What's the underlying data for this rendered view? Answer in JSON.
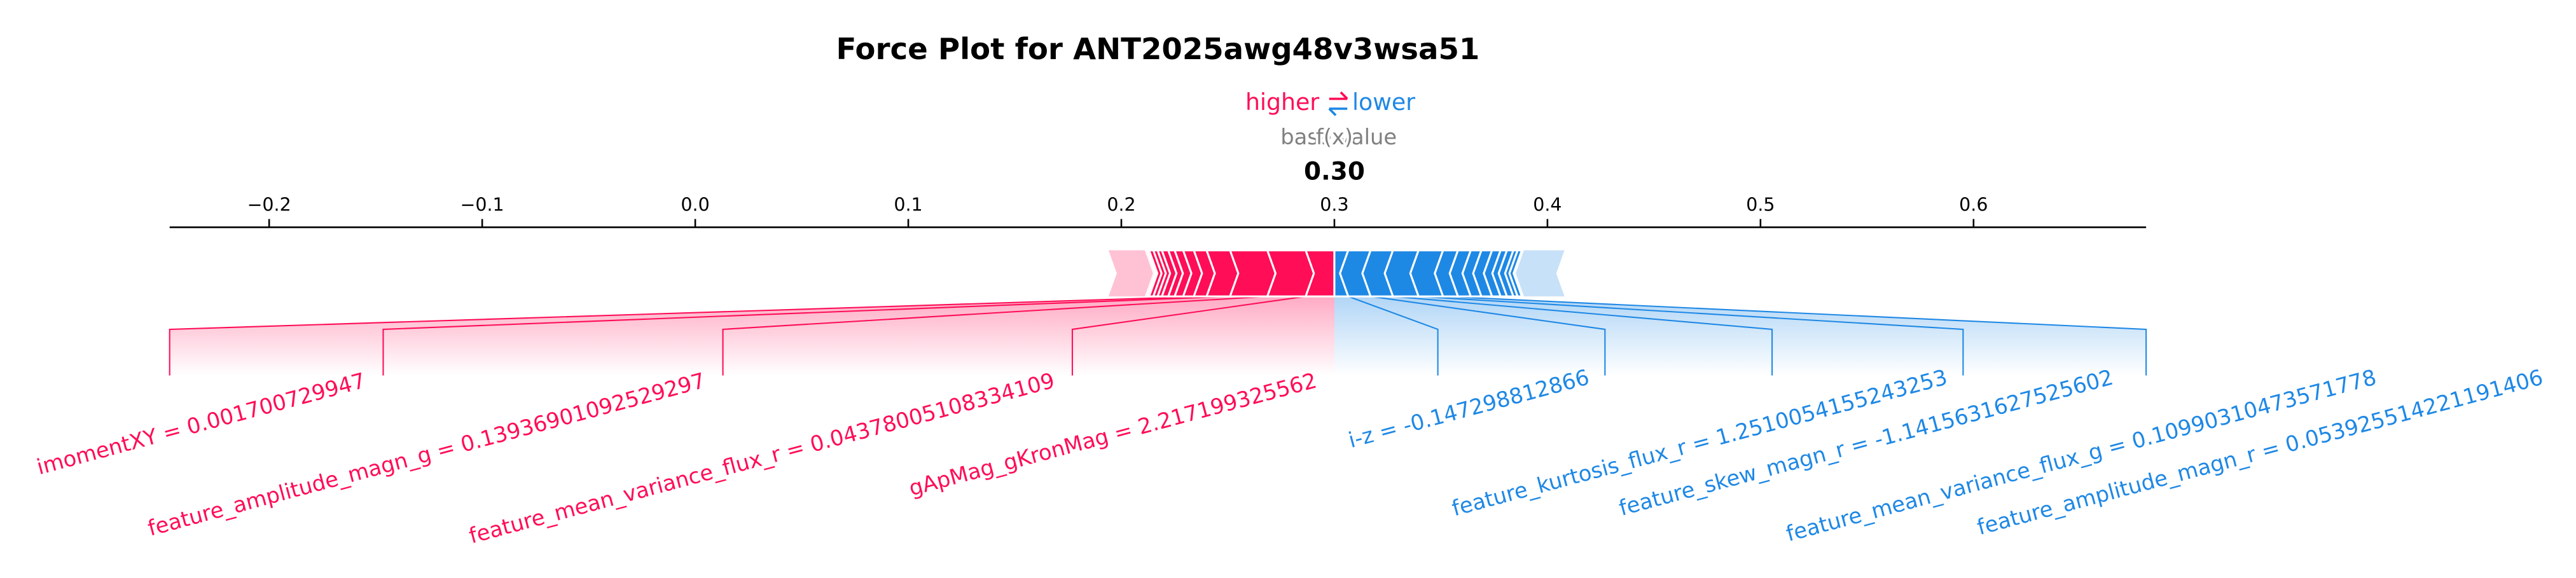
{
  "chart_data": {
    "type": "force",
    "title": "Force Plot for ANT2025awg48v3wsa51",
    "higher_label": "higher",
    "lower_label": "lower",
    "base_value_label": "base value",
    "fx_label": "f(x)",
    "fx": {
      "value": 0.3,
      "label": "0.30"
    },
    "base_value": 0.302,
    "xlim": [
      -0.2467,
      0.681
    ],
    "xticks": [
      {
        "value": -0.2,
        "label": "−0.2"
      },
      {
        "value": -0.1,
        "label": "−0.1"
      },
      {
        "value": 0,
        "label": "0.0"
      },
      0.1,
      0.2,
      0.3,
      0.4,
      0.5,
      0.6
    ],
    "positive": {
      "color": "#ff0d57",
      "features": [
        {
          "label": "gApMag_gKronMag = 2.217199325562",
          "value": 0.0135
        },
        {
          "label": "feature_mean_variance_flux_r = 0.04378005108334109",
          "value": 0.018
        },
        {
          "label": "feature_amplitude_magn_g = 0.1393690109252929​7",
          "value": 0.0175
        },
        {
          "label": "imomentXY = 0.001700729947",
          "value": 0.011
        },
        {
          "value": 0.006
        },
        {
          "value": 0.005
        },
        {
          "value": 0.004
        },
        {
          "value": 0.003
        },
        {
          "value": 0.003
        },
        {
          "value": 0.002
        },
        {
          "value": 0.002
        },
        {
          "value": 0.002
        },
        {
          "value": 0.001
        },
        {
          "value": 0.001
        },
        {
          "value": 0.017,
          "faded": true
        }
      ]
    },
    "negative": {
      "color": "#1e88e5",
      "features": [
        {
          "label": "i-z = -0.147298812866",
          "value": 0.0065
        },
        {
          "label": "feature_kurtosis_flux_r = 1.2510054155243253",
          "value": 0.0105
        },
        {
          "label": "feature_skew_magn_r = -1.1415631627525602",
          "value": 0.0105
        },
        {
          "label": "feature_mean_variance_flux_g = 0.10990310473571778",
          "value": 0.012
        },
        {
          "label": "feature_amplitude_magn_r = 0.053925514221191406",
          "value": 0.0115
        },
        {
          "value": 0.007
        },
        {
          "value": 0.006
        },
        {
          "value": 0.005
        },
        {
          "value": 0.005
        },
        {
          "value": 0.004
        },
        {
          "value": 0.003
        },
        {
          "value": 0.003
        },
        {
          "value": 0.002
        },
        {
          "value": 0.002
        },
        {
          "value": 0.001
        },
        {
          "value": 0.019,
          "faded": true
        }
      ]
    }
  }
}
